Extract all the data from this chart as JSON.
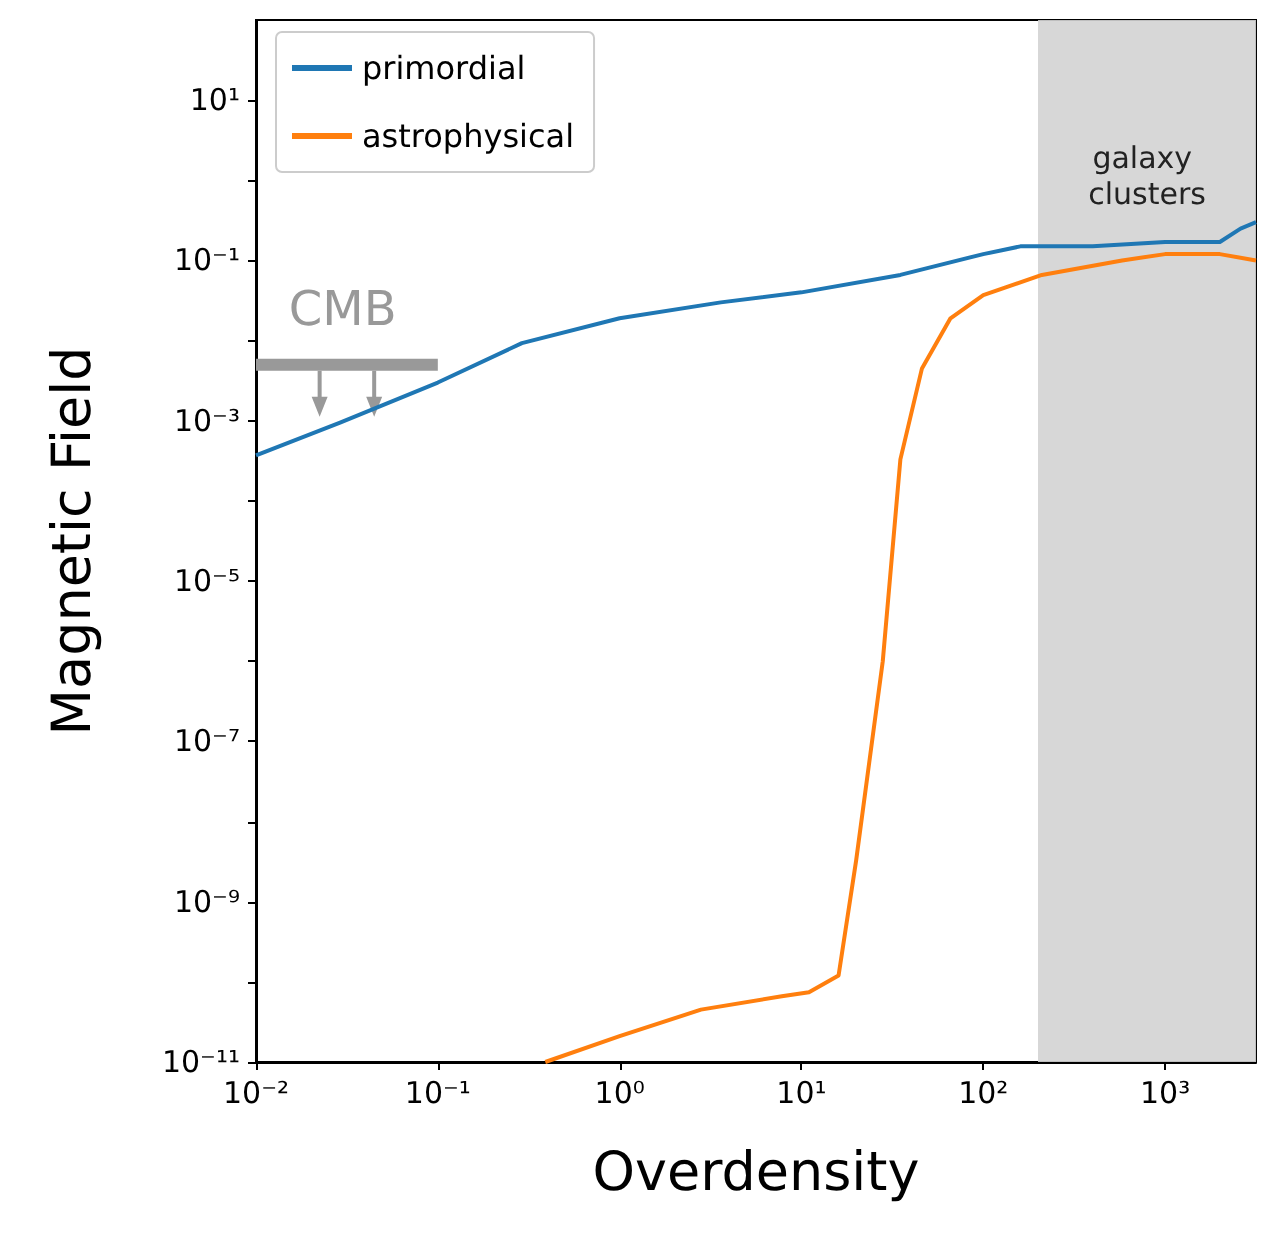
{
  "chart_data": {
    "type": "line",
    "xlabel": "Overdensity",
    "ylabel": "Magnetic Field",
    "log": "xy",
    "grid": false,
    "legend": "top left",
    "line_style": "solid",
    "marker": "none",
    "xlim": [
      0.01,
      3162
    ],
    "ylim": [
      1e-11,
      100
    ],
    "xticks": [
      {
        "value": 0.01,
        "label": "10⁻²"
      },
      {
        "value": 0.1,
        "label": "10⁻¹"
      },
      {
        "value": 1,
        "label": "10⁰"
      },
      {
        "value": 10,
        "label": "10¹"
      },
      {
        "value": 100,
        "label": "10²"
      },
      {
        "value": 1000,
        "label": "10³"
      }
    ],
    "yticks": [
      {
        "value": 1e-11,
        "label": "10⁻¹¹"
      },
      {
        "value": 1e-10,
        "label": null
      },
      {
        "value": 1e-09,
        "label": "10⁻⁹"
      },
      {
        "value": 1e-08,
        "label": null
      },
      {
        "value": 1e-07,
        "label": "10⁻⁷"
      },
      {
        "value": 1e-06,
        "label": null
      },
      {
        "value": 1e-05,
        "label": "10⁻⁵"
      },
      {
        "value": 0.0001,
        "label": null
      },
      {
        "value": 0.001,
        "label": "10⁻³"
      },
      {
        "value": 0.01,
        "label": null
      },
      {
        "value": 0.1,
        "label": "10⁻¹"
      },
      {
        "value": 1,
        "label": null
      },
      {
        "value": 10,
        "label": "10¹"
      }
    ],
    "series": [
      {
        "name": "primordial",
        "color": "#1f77b4",
        "x": [
          0.01,
          0.029,
          0.1,
          0.29,
          1,
          3.6,
          10,
          35,
          100,
          160,
          400,
          1000,
          2000,
          2600,
          3162
        ],
        "values": [
          0.00037,
          0.00095,
          0.003,
          0.0093,
          0.019,
          0.03,
          0.04,
          0.066,
          0.12,
          0.15,
          0.15,
          0.17,
          0.17,
          0.25,
          0.3
        ]
      },
      {
        "name": "astrophysical",
        "color": "#ff7f0e",
        "x": [
          0.39,
          1,
          2.8,
          7.8,
          11,
          16,
          20,
          28,
          35,
          46,
          66,
          100,
          210,
          580,
          1000,
          2000,
          3162
        ],
        "values": [
          1e-11,
          2.1e-11,
          4.5e-11,
          6.6e-11,
          7.4e-11,
          1.2e-10,
          3.3e-09,
          1e-06,
          0.00033,
          0.0045,
          0.019,
          0.037,
          0.066,
          0.1,
          0.12,
          0.12,
          0.1
        ]
      },
      {
        "color": "#999999",
        "x": [
          0.01,
          0.1
        ],
        "values": [
          0.005,
          0.005
        ]
      }
    ],
    "bands": [
      {
        "axis": "x",
        "from": 200,
        "to": 3162,
        "label": "galaxy clusters",
        "color": "#d3d3d3"
      }
    ],
    "annotations": [
      {
        "text": "CMB",
        "x": 0.03,
        "y": 0.005
      }
    ]
  }
}
